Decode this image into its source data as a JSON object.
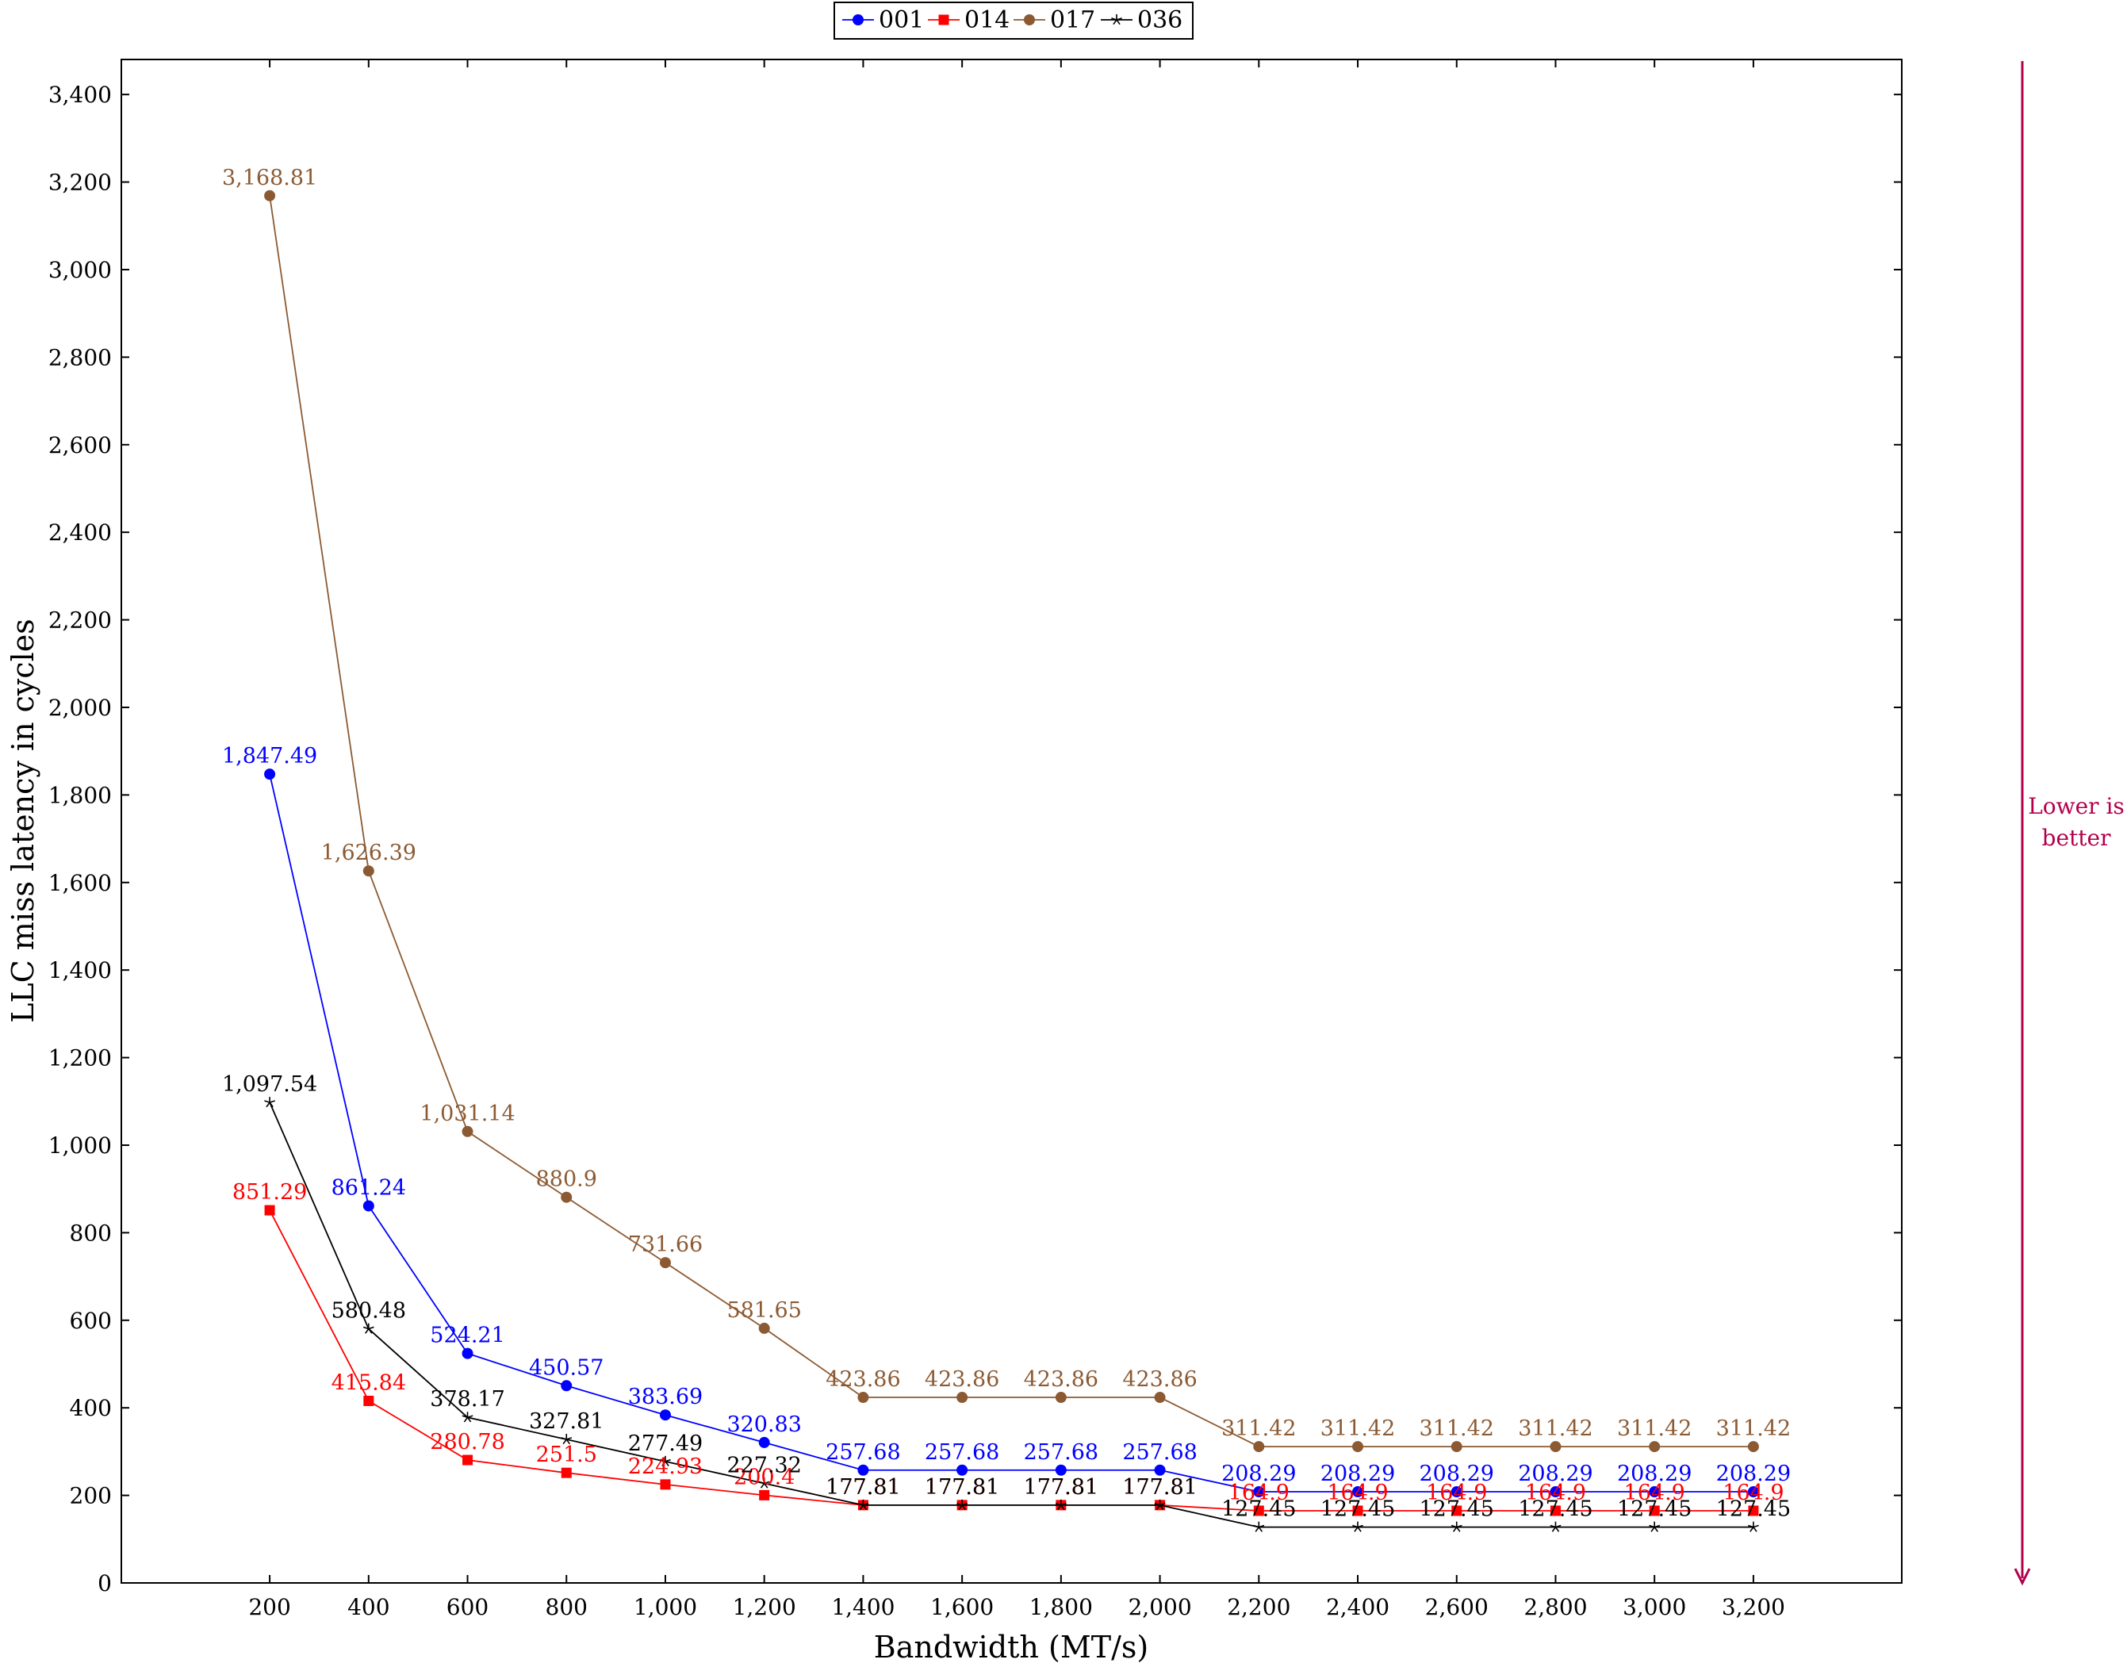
{
  "chart_data": {
    "type": "line",
    "title": "",
    "xlabel": "Bandwidth (MT/s)",
    "ylabel": "LLC miss latency in cycles",
    "x": [
      200,
      400,
      600,
      800,
      1000,
      1200,
      1400,
      1600,
      1800,
      2000,
      2200,
      2400,
      2600,
      2800,
      3000,
      3200
    ],
    "x_tick_labels": [
      "200",
      "400",
      "600",
      "800",
      "1,000",
      "1,200",
      "1,400",
      "1,600",
      "1,800",
      "2,000",
      "2,200",
      "2,400",
      "2,600",
      "2,800",
      "3,000",
      "3,200"
    ],
    "xlim": [
      -100,
      3500
    ],
    "y_ticks": [
      0,
      200,
      400,
      600,
      800,
      1000,
      1200,
      1400,
      1600,
      1800,
      2000,
      2200,
      2400,
      2600,
      2800,
      3000,
      3200,
      3400
    ],
    "y_tick_labels": [
      "0",
      "200",
      "400",
      "600",
      "800",
      "1,000",
      "1,200",
      "1,400",
      "1,600",
      "1,800",
      "2,000",
      "2,200",
      "2,400",
      "2,600",
      "2,800",
      "3,000",
      "3,200",
      "3,400"
    ],
    "ylim": [
      0,
      3480
    ],
    "grid": false,
    "legend_position": "top-center",
    "series": [
      {
        "name": "001",
        "color": "#0000ff",
        "marker": "circle",
        "values": [
          1847.49,
          861.24,
          524.21,
          450.57,
          383.69,
          320.83,
          257.68,
          257.68,
          257.68,
          257.68,
          208.29,
          208.29,
          208.29,
          208.29,
          208.29,
          208.29
        ],
        "labels": [
          "1,847.49",
          "861.24",
          "524.21",
          "450.57",
          "383.69",
          "320.83",
          "257.68",
          "257.68",
          "257.68",
          "257.68",
          "208.29",
          "208.29",
          "208.29",
          "208.29",
          "208.29",
          "208.29"
        ]
      },
      {
        "name": "014",
        "color": "#ff0000",
        "marker": "square",
        "values": [
          851.29,
          415.84,
          280.78,
          251.5,
          224.93,
          200.4,
          177.81,
          177.81,
          177.81,
          177.81,
          164.9,
          164.9,
          164.9,
          164.9,
          164.9,
          164.9
        ],
        "labels": [
          "851.29",
          "415.84",
          "280.78",
          "251.5",
          "224.93",
          "200.4",
          "177.81",
          "177.81",
          "177.81",
          "177.81",
          "164.9",
          "164.9",
          "164.9",
          "164.9",
          "164.9",
          "164.9"
        ]
      },
      {
        "name": "017",
        "color": "#8c5a32",
        "marker": "circle",
        "values": [
          3168.81,
          1626.39,
          1031.14,
          880.9,
          731.66,
          581.65,
          423.86,
          423.86,
          423.86,
          423.86,
          311.42,
          311.42,
          311.42,
          311.42,
          311.42,
          311.42
        ],
        "labels": [
          "3,168.81",
          "1,626.39",
          "1,031.14",
          "880.9",
          "731.66",
          "581.65",
          "423.86",
          "423.86",
          "423.86",
          "423.86",
          "311.42",
          "311.42",
          "311.42",
          "311.42",
          "311.42",
          "311.42"
        ]
      },
      {
        "name": "036",
        "color": "#000000",
        "marker": "star",
        "values": [
          1097.54,
          580.48,
          378.17,
          327.81,
          277.49,
          227.32,
          177.81,
          177.81,
          177.81,
          177.81,
          127.45,
          127.45,
          127.45,
          127.45,
          127.45,
          127.45
        ],
        "labels": [
          "1,097.54",
          "580.48",
          "378.17",
          "327.81",
          "277.49",
          "227.32",
          "177.81",
          "177.81",
          "177.81",
          "177.81",
          "127.45",
          "127.45",
          "127.45",
          "127.45",
          "127.45",
          "127.45"
        ]
      }
    ]
  },
  "annotation": {
    "line1": "Lower is",
    "line2": "better",
    "color": "#b3004d"
  }
}
